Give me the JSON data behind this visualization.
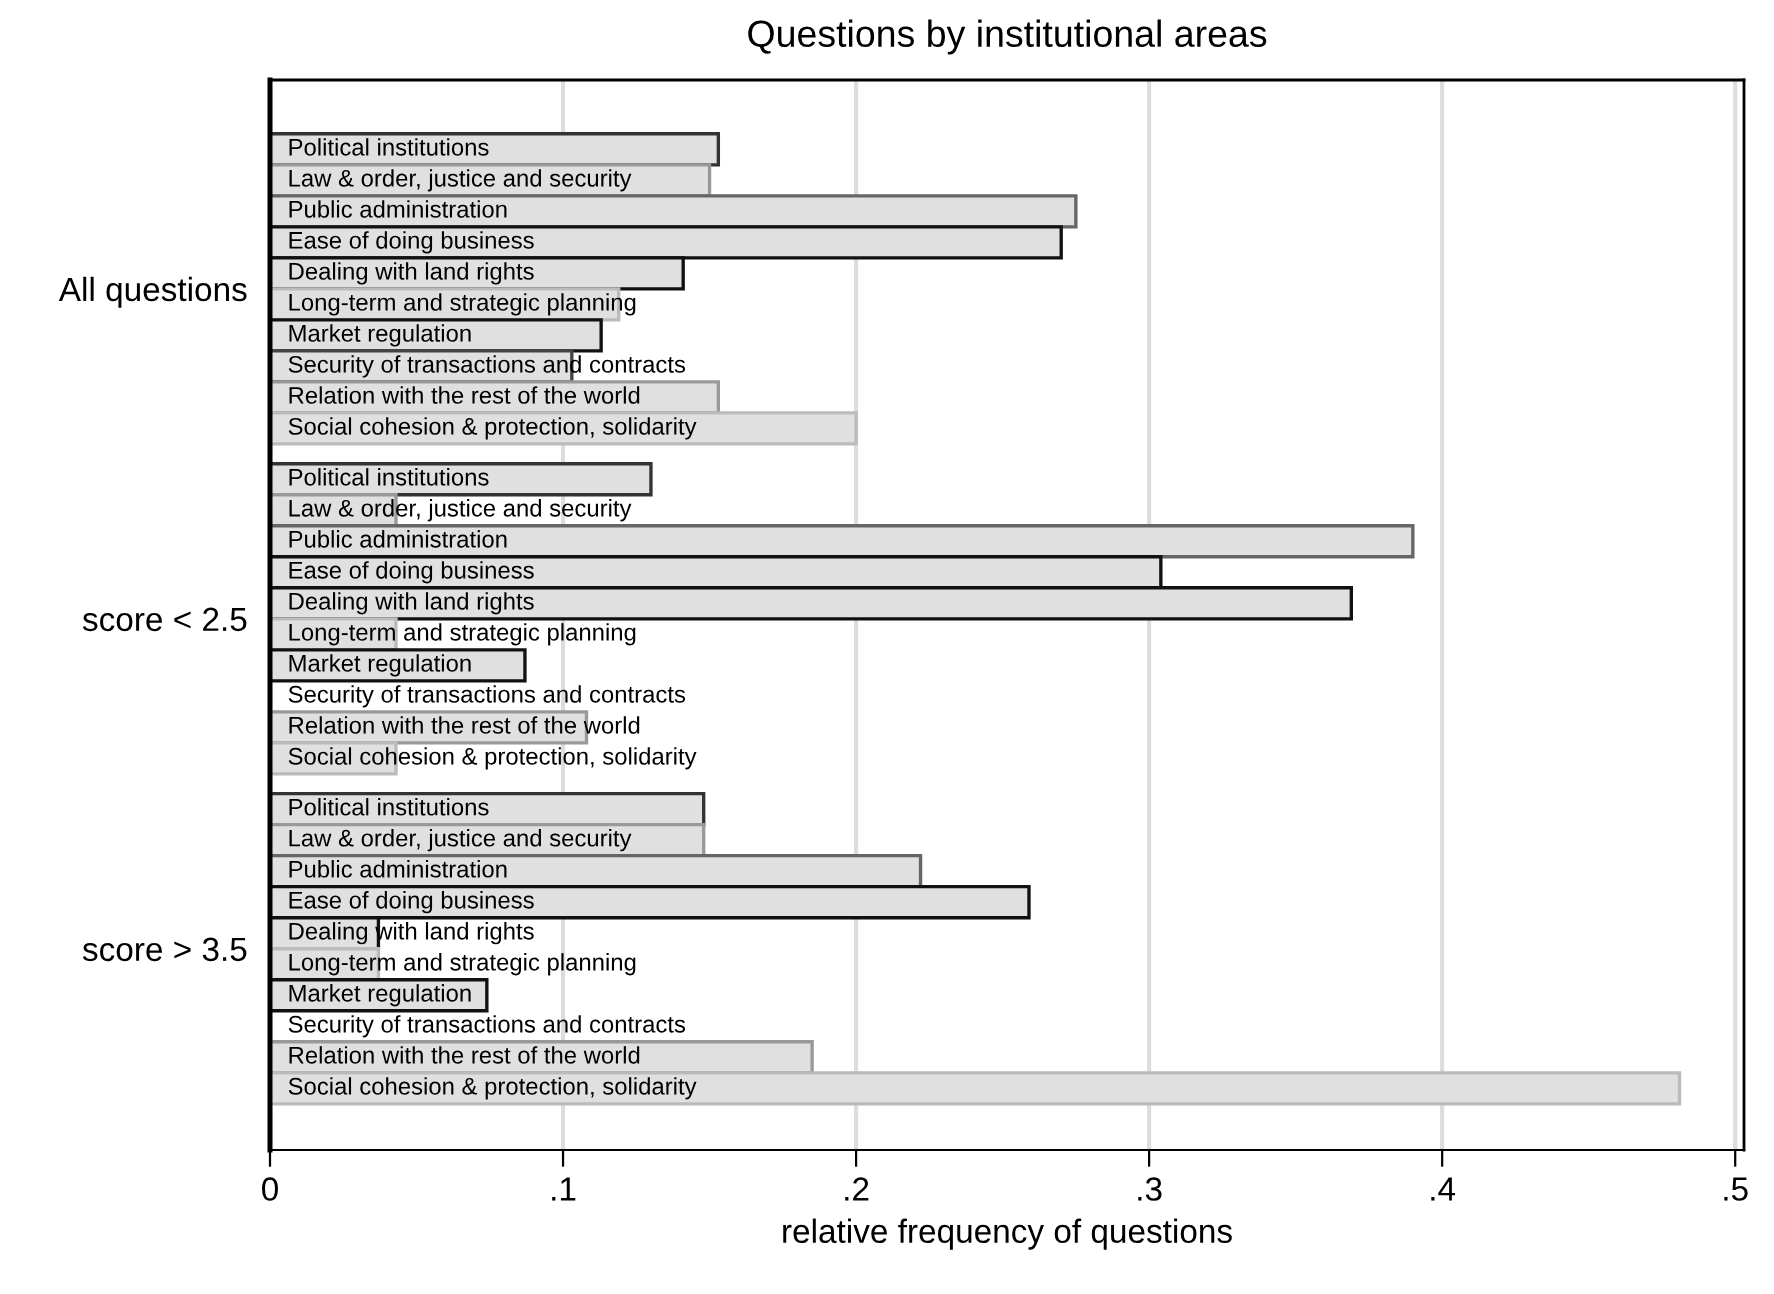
{
  "chart_data": {
    "type": "bar",
    "orientation": "horizontal",
    "title": "Questions by institutional areas",
    "xlabel": "relative frequency of questions",
    "categories": [
      "All questions",
      "score < 2.5",
      "score > 3.5"
    ],
    "series": [
      {
        "name": "Political institutions",
        "color": "#e0e0e0",
        "values": [
          0.153,
          0.13,
          0.148
        ]
      },
      {
        "name": "Law & order, justice and security",
        "color": "#e0e0e0",
        "values": [
          0.15,
          0.043,
          0.148
        ]
      },
      {
        "name": "Public administration",
        "color": "#e0e0e0",
        "values": [
          0.275,
          0.39,
          0.222
        ]
      },
      {
        "name": "Ease of doing business",
        "color": "#e0e0e0",
        "values": [
          0.27,
          0.304,
          0.259
        ]
      },
      {
        "name": "Dealing with land rights",
        "color": "#e0e0e0",
        "values": [
          0.141,
          0.369,
          0.037
        ]
      },
      {
        "name": "Long-term and strategic planning",
        "color": "#e0e0e0",
        "values": [
          0.119,
          0.043,
          0.037
        ]
      },
      {
        "name": "Market regulation",
        "color": "#e0e0e0",
        "values": [
          0.113,
          0.087,
          0.074
        ]
      },
      {
        "name": "Security of transactions and contracts",
        "color": "#e0e0e0",
        "values": [
          0.103,
          0,
          0
        ]
      },
      {
        "name": "Relation with the rest of the world",
        "color": "#e0e0e0",
        "values": [
          0.153,
          0.108,
          0.185
        ]
      },
      {
        "name": "Social cohesion & protection, solidarity",
        "color": "#e0e0e0",
        "values": [
          0.2,
          0.043,
          0.481
        ]
      }
    ],
    "xlim": [
      0,
      0.503
    ],
    "xticks": [
      0,
      {
        "value": 0.1,
        "label": ".1"
      },
      {
        "value": 0.2,
        "label": ".2"
      },
      {
        "value": 0.3,
        "label": ".3"
      },
      {
        "value": 0.4,
        "label": ".4"
      },
      {
        "value": 0.5,
        "label": ".5"
      }
    ],
    "grid": "x",
    "legend": false
  }
}
